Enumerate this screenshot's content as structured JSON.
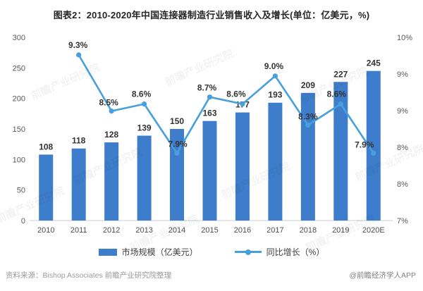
{
  "title": "图表2：2010-2020年中国连接器制造行业销售收入及增长(单位：亿美元，%)",
  "chart_data": {
    "type": "combo_bar_line",
    "categories": [
      "2010",
      "2011",
      "2012",
      "2013",
      "2014",
      "2015",
      "2016",
      "2017",
      "2018",
      "2019",
      "2020E"
    ],
    "series": [
      {
        "name": "市场规模（亿美元）",
        "type": "bar",
        "axis": "left",
        "values": [
          108,
          118,
          128,
          139,
          150,
          163,
          177,
          193,
          209,
          227,
          245
        ]
      },
      {
        "name": "同比增长（%）",
        "type": "line",
        "axis": "right",
        "values": [
          null,
          9.3,
          8.5,
          8.6,
          7.9,
          8.7,
          8.6,
          9.0,
          8.3,
          8.6,
          7.9
        ]
      }
    ],
    "left_axis": {
      "ticks": [
        "300",
        "250",
        "200",
        "150",
        "100",
        "50",
        "0"
      ],
      "range": [
        0,
        300
      ]
    },
    "right_axis": {
      "ticks": [
        "10%",
        "9%",
        "9%",
        "8%",
        "8%",
        "7%"
      ],
      "plot_range": [
        6.94,
        9.55
      ]
    },
    "colors": {
      "bar": "#3E7DCB",
      "line": "#47A0DC",
      "value_label": "#333333",
      "axis_text": "#595959",
      "x_text": "#4d4d4d",
      "baseline": "#cccccc"
    },
    "legend_position": "bottom",
    "grid": false,
    "title": "图表2：2010-2020年中国连接器制造行业销售收入及增长(单位：亿美元，%)"
  },
  "legend": {
    "bar_label": "市场规模（亿美元）",
    "line_label": "同比增长（%）"
  },
  "footer": {
    "source": "资料来源：Bishop Associates 前瞻产业研究院整理",
    "credit": "@前瞻经济学人APP"
  },
  "watermark": "前瞻产业研究院"
}
